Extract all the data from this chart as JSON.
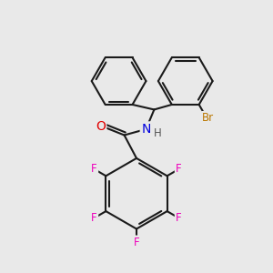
{
  "background_color": "#e9e9e9",
  "bond_color": "#1a1a1a",
  "bond_width": 1.5,
  "atom_colors": {
    "O": "#e00000",
    "N": "#0000dd",
    "H": "#555555",
    "F": "#ee00bb",
    "Br": "#bb7700"
  },
  "font_size": 8.5,
  "fig_width": 3.0,
  "fig_height": 3.0
}
